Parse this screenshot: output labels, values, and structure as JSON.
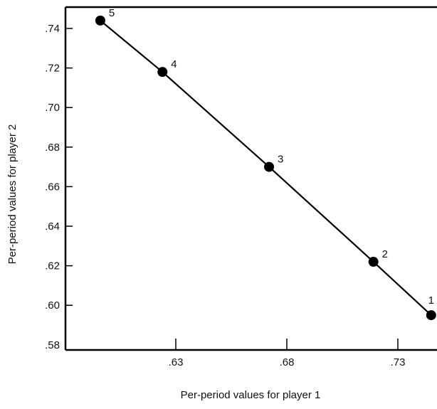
{
  "chart_data": {
    "type": "line",
    "title": "",
    "xlabel": "Per-period values for player 1",
    "ylabel": "Per-period values for player 2",
    "xlim": [
      0.58,
      0.748
    ],
    "ylim": [
      0.58,
      0.75
    ],
    "x_ticks": [
      {
        "value": 0.63,
        "label": ".63"
      },
      {
        "value": 0.68,
        "label": ".68"
      },
      {
        "value": 0.73,
        "label": ".73"
      }
    ],
    "y_ticks": [
      {
        "value": 0.58,
        "label": ".58"
      },
      {
        "value": 0.6,
        "label": ".60"
      },
      {
        "value": 0.62,
        "label": ".62"
      },
      {
        "value": 0.64,
        "label": ".64"
      },
      {
        "value": 0.66,
        "label": ".66"
      },
      {
        "value": 0.68,
        "label": ".68"
      },
      {
        "value": 0.7,
        "label": ".70"
      },
      {
        "value": 0.72,
        "label": ".72"
      },
      {
        "value": 0.74,
        "label": ".74"
      }
    ],
    "grid": false,
    "series": [
      {
        "color": "#000000",
        "points": [
          {
            "label": "1",
            "x": 0.745,
            "y": 0.595
          },
          {
            "label": "2",
            "x": 0.719,
            "y": 0.622
          },
          {
            "label": "3",
            "x": 0.672,
            "y": 0.67
          },
          {
            "label": "4",
            "x": 0.624,
            "y": 0.718
          },
          {
            "label": "5",
            "x": 0.596,
            "y": 0.744
          }
        ]
      }
    ]
  }
}
